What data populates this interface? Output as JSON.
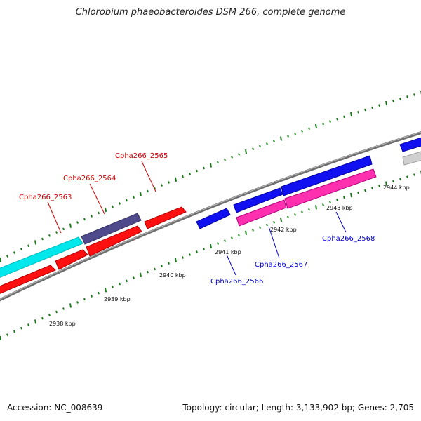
{
  "title": "Chlorobium phaeobacteroides DSM 266, complete genome",
  "footer": {
    "accession": "Accession: NC_008639",
    "summary": "Topology: circular; Length: 3,133,902 bp; Genes: 2,705"
  },
  "scale_labels": [
    "2938 kbp",
    "2939 kbp",
    "2940 kbp",
    "2941 kbp",
    "2942 kbp",
    "2943 kbp",
    "2944 kbp"
  ],
  "colors": {
    "backbone": "#7a7a7a",
    "tick": "#1a7a1a",
    "forward_label": "#cc0000",
    "reverse_label": "#0000cc",
    "red": "#ff0000",
    "blue": "#0000ff",
    "cyan": "#00ffff",
    "slate": "#4a4a8c",
    "pink": "#ff3ab0",
    "grey": "#cfcfcf"
  },
  "gene_labels": {
    "g2563": "Cpha266_2563",
    "g2564": "Cpha266_2564",
    "g2565": "Cpha266_2565",
    "g2566": "Cpha266_2566",
    "g2567": "Cpha266_2567",
    "g2568": "Cpha266_2568"
  }
}
